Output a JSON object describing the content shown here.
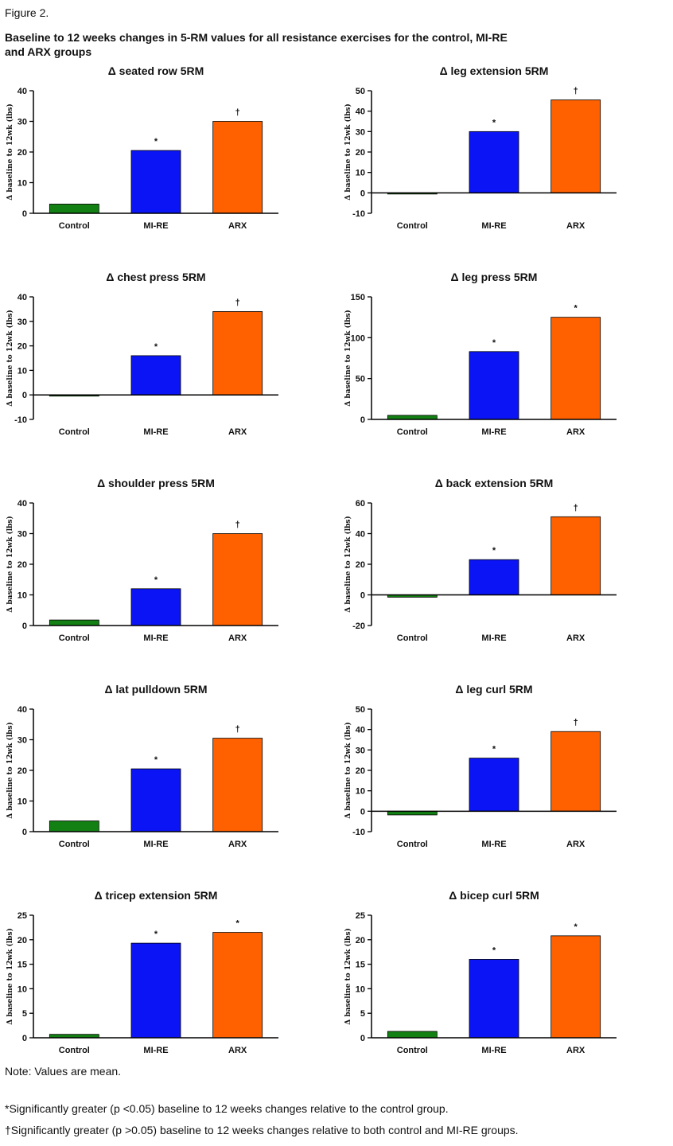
{
  "figure_label": "Figure 2.",
  "figure_title": "Baseline to 12 weeks changes in 5-RM values for all resistance exercises for the control, MI-RE and ARX groups",
  "notes": {
    "mean": "Note: Values are mean.",
    "star": "*Significantly greater (p <0.05) baseline to 12 weeks changes relative to the control group.",
    "dagger": "†Significantly greater (p >0.05) baseline to 12 weeks changes relative to both control and MI-RE groups."
  },
  "colors": {
    "Control": "#138013",
    "MI-RE": "#0a14f5",
    "ARX": "#ff6100"
  },
  "chart_data": [
    {
      "type": "bar",
      "title": "Δ seated row 5RM",
      "ylabel": "Δ baseline to 12wk (lbs)",
      "categories": [
        "Control",
        "MI-RE",
        "ARX"
      ],
      "values": [
        3,
        20.5,
        30
      ],
      "marks": [
        "",
        "*",
        "†"
      ],
      "ylim": [
        0,
        40
      ],
      "yticks": [
        0,
        10,
        20,
        30,
        40
      ]
    },
    {
      "type": "bar",
      "title": "Δ leg extension 5RM",
      "ylabel": "Δ baseline to 12wk (lbs)",
      "categories": [
        "Control",
        "MI-RE",
        "ARX"
      ],
      "values": [
        -0.5,
        30,
        45.5
      ],
      "marks": [
        "",
        "*",
        "†"
      ],
      "ylim": [
        -10,
        50
      ],
      "yticks": [
        -10,
        0,
        10,
        20,
        30,
        40,
        50
      ]
    },
    {
      "type": "bar",
      "title": "Δ chest press 5RM",
      "ylabel": "Δ baseline to 12wk (lbs)",
      "categories": [
        "Control",
        "MI-RE",
        "ARX"
      ],
      "values": [
        -0.5,
        16,
        34
      ],
      "marks": [
        "",
        "*",
        "†"
      ],
      "ylim": [
        -10,
        40
      ],
      "yticks": [
        -10,
        0,
        10,
        20,
        30,
        40
      ]
    },
    {
      "type": "bar",
      "title": "Δ leg press 5RM",
      "ylabel": "Δ baseline to 12wk (lbs)",
      "categories": [
        "Control",
        "MI-RE",
        "ARX"
      ],
      "values": [
        5,
        83,
        125
      ],
      "marks": [
        "",
        "*",
        "*"
      ],
      "ylim": [
        0,
        150
      ],
      "yticks": [
        0,
        50,
        100,
        150
      ]
    },
    {
      "type": "bar",
      "title": "Δ shoulder press 5RM",
      "ylabel": "Δ baseline to 12wk (lbs)",
      "categories": [
        "Control",
        "MI-RE",
        "ARX"
      ],
      "values": [
        1.8,
        12,
        30
      ],
      "marks": [
        "",
        "*",
        "†"
      ],
      "ylim": [
        0,
        40
      ],
      "yticks": [
        0,
        10,
        20,
        30,
        40
      ]
    },
    {
      "type": "bar",
      "title": "Δ back extension 5RM",
      "ylabel": "Δ baseline to 12wk (lbs)",
      "categories": [
        "Control",
        "MI-RE",
        "ARX"
      ],
      "values": [
        -1.5,
        23,
        51
      ],
      "marks": [
        "",
        "*",
        "†"
      ],
      "ylim": [
        -20,
        60
      ],
      "yticks": [
        -20,
        0,
        20,
        40,
        60
      ]
    },
    {
      "type": "bar",
      "title": "Δ lat pulldown 5RM",
      "ylabel": "Δ baseline to 12wk (lbs)",
      "categories": [
        "Control",
        "MI-RE",
        "ARX"
      ],
      "values": [
        3.5,
        20.5,
        30.5
      ],
      "marks": [
        "",
        "*",
        "†"
      ],
      "ylim": [
        0,
        40
      ],
      "yticks": [
        0,
        10,
        20,
        30,
        40
      ]
    },
    {
      "type": "bar",
      "title": "Δ leg curl 5RM",
      "ylabel": "Δ baseline to 12wk (lbs)",
      "categories": [
        "Control",
        "MI-RE",
        "ARX"
      ],
      "values": [
        -1.8,
        26,
        39
      ],
      "marks": [
        "",
        "*",
        "†"
      ],
      "ylim": [
        -10,
        50
      ],
      "yticks": [
        -10,
        0,
        10,
        20,
        30,
        40,
        50
      ]
    },
    {
      "type": "bar",
      "title": "Δ tricep extension 5RM",
      "ylabel": "Δ baseline to 12wk (lbs)",
      "categories": [
        "Control",
        "MI-RE",
        "ARX"
      ],
      "values": [
        0.7,
        19.3,
        21.5
      ],
      "marks": [
        "",
        "*",
        "*"
      ],
      "ylim": [
        0,
        25
      ],
      "yticks": [
        0,
        5,
        10,
        15,
        20,
        25
      ]
    },
    {
      "type": "bar",
      "title": "Δ bicep curl 5RM",
      "ylabel": "Δ baseline to 12wk (lbs)",
      "categories": [
        "Control",
        "MI-RE",
        "ARX"
      ],
      "values": [
        1.3,
        16,
        20.8
      ],
      "marks": [
        "",
        "*",
        "*"
      ],
      "ylim": [
        0,
        25
      ],
      "yticks": [
        0,
        5,
        10,
        15,
        20,
        25
      ]
    }
  ]
}
